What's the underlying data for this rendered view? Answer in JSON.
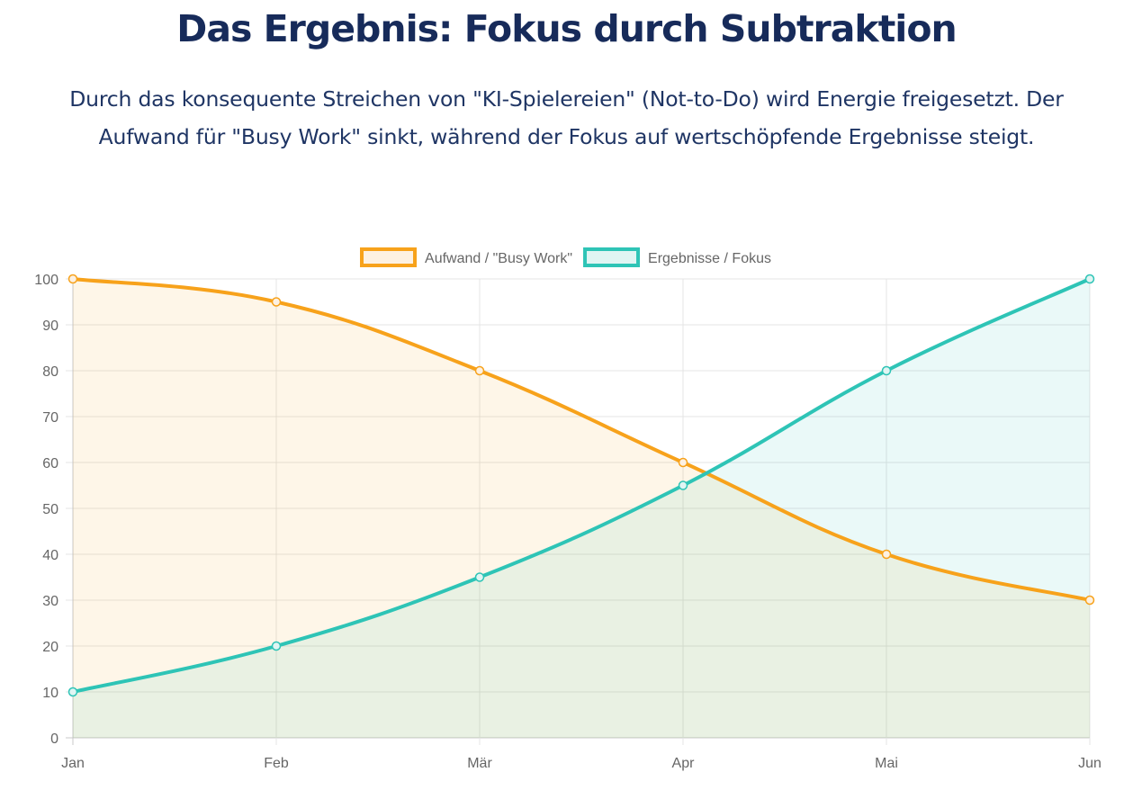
{
  "header": {
    "title": "Das Ergebnis: Fokus durch Subtraktion",
    "subtitle": "Durch das konsequente Streichen von \"KI-Spielereien\" (Not-to-Do) wird Energie freigesetzt. Der Aufwand für \"Busy Work\" sinkt, während der Fokus auf wertschöpfende Ergebnisse steigt."
  },
  "chart_data": {
    "type": "area",
    "title": "",
    "xlabel": "",
    "ylabel": "",
    "categories": [
      "Jan",
      "Feb",
      "Mär",
      "Apr",
      "Mai",
      "Jun"
    ],
    "ylim": [
      0,
      100
    ],
    "yticks": [
      0,
      10,
      20,
      30,
      40,
      50,
      60,
      70,
      80,
      90,
      100
    ],
    "grid": true,
    "legend_position": "top",
    "series": [
      {
        "name": "Aufwand / \"Busy Work\"",
        "values": [
          100,
          95,
          80,
          60,
          40,
          30
        ],
        "color": "#f7a21b",
        "fill": "#fdf1e2"
      },
      {
        "name": "Ergebnisse / Fokus",
        "values": [
          10,
          20,
          35,
          55,
          80,
          100
        ],
        "color": "#2ec4b6",
        "fill": "#e0f5f3"
      }
    ]
  }
}
